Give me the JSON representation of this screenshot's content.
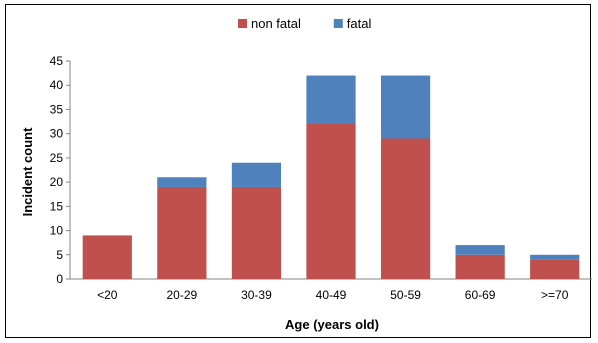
{
  "chart_data": {
    "type": "bar",
    "stacked": true,
    "title": "",
    "xlabel": "Age (years old)",
    "ylabel": "Incident count",
    "ylim": [
      0,
      45
    ],
    "yticks": [
      0,
      5,
      10,
      15,
      20,
      25,
      30,
      35,
      40,
      45
    ],
    "grid": false,
    "legend_position": "top",
    "categories": [
      "<20",
      "20-29",
      "30-39",
      "40-49",
      "50-59",
      "60-69",
      ">=70"
    ],
    "series": [
      {
        "name": "non fatal",
        "color": "#C0504D",
        "values": [
          9,
          19,
          19,
          32,
          29,
          5,
          4
        ]
      },
      {
        "name": "fatal",
        "color": "#4F81BD",
        "values": [
          0,
          2,
          5,
          10,
          13,
          2,
          1
        ]
      }
    ]
  }
}
